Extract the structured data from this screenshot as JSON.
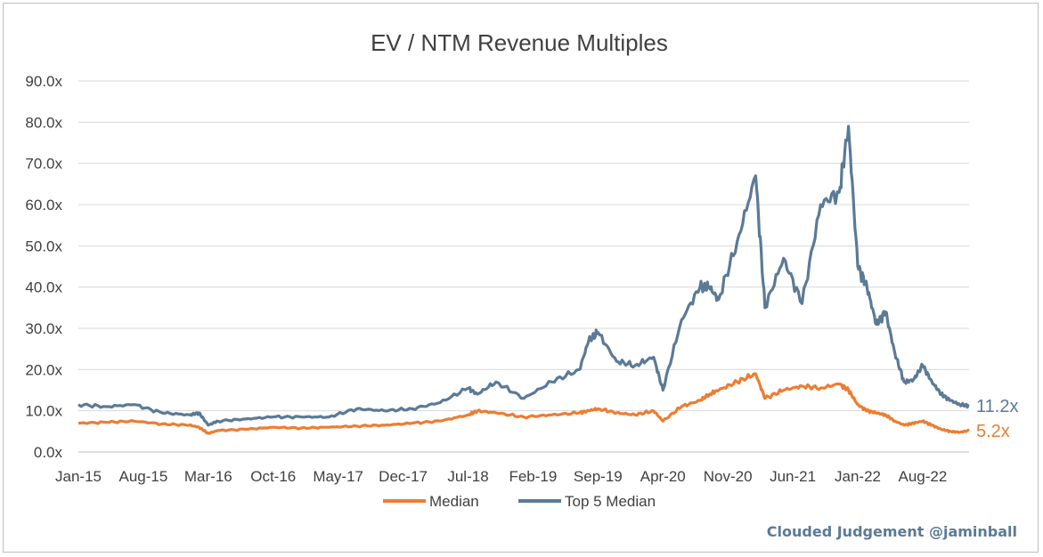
{
  "chart_data": {
    "type": "line",
    "title": "EV / NTM Revenue Multiples",
    "xlabel": "",
    "ylabel": "",
    "ylim": [
      0,
      90
    ],
    "y_ticks": [
      "0.0x",
      "10.0x",
      "20.0x",
      "30.0x",
      "40.0x",
      "50.0x",
      "60.0x",
      "70.0x",
      "80.0x",
      "90.0x"
    ],
    "x_tick_labels": [
      "Jan-15",
      "Aug-15",
      "Mar-16",
      "Oct-16",
      "May-17",
      "Dec-17",
      "Jul-18",
      "Feb-19",
      "Sep-19",
      "Apr-20",
      "Nov-20",
      "Jun-21",
      "Jan-22",
      "Aug-22"
    ],
    "grid": "horizontal",
    "legend_position": "bottom",
    "x": [
      "Jan-15",
      "Apr-15",
      "Jul-15",
      "Oct-15",
      "Jan-16",
      "Feb-16",
      "Mar-16",
      "Apr-16",
      "Jul-16",
      "Oct-16",
      "Jan-17",
      "Apr-17",
      "Jul-17",
      "Oct-17",
      "Jan-18",
      "Apr-18",
      "Jul-18",
      "Aug-18",
      "Oct-18",
      "Jan-19",
      "Apr-19",
      "Jul-19",
      "Aug-19",
      "Sep-19",
      "Nov-19",
      "Jan-20",
      "Mar-20",
      "Apr-20",
      "Jun-20",
      "Aug-20",
      "Sep-20",
      "Oct-20",
      "Dec-20",
      "Feb-21",
      "Mar-21",
      "May-21",
      "Jul-21",
      "Sep-21",
      "Nov-21",
      "Dec-21",
      "Jan-22",
      "Feb-22",
      "Mar-22",
      "Apr-22",
      "May-22",
      "Jun-22",
      "Jul-22",
      "Aug-22",
      "Sep-22",
      "Oct-22",
      "Nov-22",
      "Dec-22",
      "Jan-23"
    ],
    "series": [
      {
        "name": "Median",
        "color": "#ed7d31",
        "end_label": "5.2x",
        "values": [
          7.0,
          7.2,
          7.5,
          6.8,
          6.5,
          6.0,
          4.5,
          5.2,
          5.5,
          6.0,
          5.8,
          6.0,
          6.3,
          6.5,
          7.0,
          7.5,
          9.0,
          10.0,
          9.5,
          8.5,
          9.0,
          9.5,
          10.0,
          10.5,
          9.5,
          9.0,
          10.0,
          7.5,
          11.0,
          12.5,
          14.0,
          15.0,
          17.0,
          19.0,
          13.0,
          15.0,
          16.0,
          15.5,
          16.5,
          15.0,
          11.5,
          10.0,
          9.5,
          9.0,
          7.5,
          6.5,
          7.0,
          7.5,
          6.5,
          5.5,
          5.0,
          4.8,
          5.2
        ]
      },
      {
        "name": "Top 5 Median",
        "color": "#5b7a96",
        "end_label": "11.2x",
        "values": [
          11.5,
          11.0,
          11.5,
          9.5,
          9.0,
          9.5,
          6.5,
          7.5,
          8.0,
          8.5,
          8.5,
          8.5,
          10.5,
          10.0,
          10.5,
          12.0,
          15.5,
          14.0,
          17.0,
          13.0,
          17.0,
          20.0,
          27.0,
          29.0,
          22.0,
          21.0,
          23.0,
          15.0,
          32.0,
          40.0,
          40.0,
          37.0,
          51.0,
          67.0,
          35.0,
          47.0,
          36.0,
          60.0,
          63.0,
          79.0,
          45.0,
          40.0,
          31.0,
          34.0,
          24.0,
          17.0,
          17.5,
          21.0,
          17.0,
          14.0,
          12.5,
          11.5,
          11.2
        ]
      }
    ]
  },
  "watermark": "Clouded Judgement @jaminball"
}
